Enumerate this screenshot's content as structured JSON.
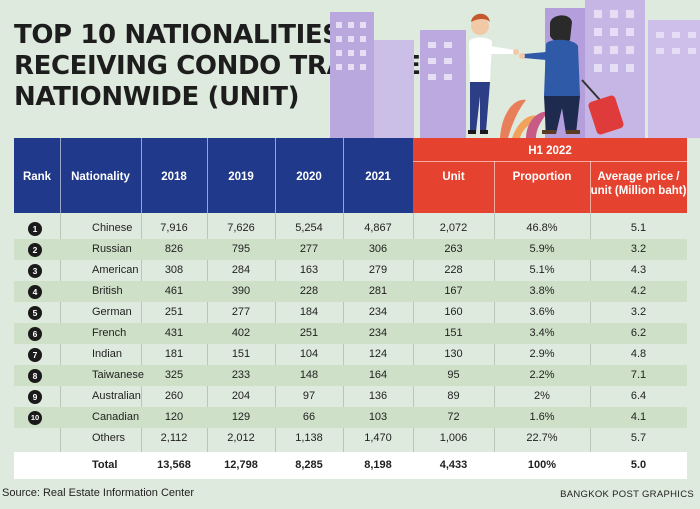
{
  "title_lines": [
    "TOP 10 NATIONALITIES",
    "RECEIVING CONDO TRANSFERS",
    "NATIONWIDE (UNIT)"
  ],
  "headers": {
    "rank": "Rank",
    "nationality": "Nationality",
    "years": [
      "2018",
      "2019",
      "2020",
      "2021"
    ],
    "group": "H1 2022",
    "unit": "Unit",
    "proportion": "Proportion",
    "avg_price_l1": "Average price /",
    "avg_price_l2": "unit (Million baht)"
  },
  "rows": [
    {
      "rank": "1",
      "nationality": "Chinese",
      "y2018": "7,916",
      "y2019": "7,626",
      "y2020": "5,254",
      "y2021": "4,867",
      "unit": "2,072",
      "proportion": "46.8%",
      "avg": "5.1"
    },
    {
      "rank": "2",
      "nationality": "Russian",
      "y2018": "826",
      "y2019": "795",
      "y2020": "277",
      "y2021": "306",
      "unit": "263",
      "proportion": "5.9%",
      "avg": "3.2"
    },
    {
      "rank": "3",
      "nationality": "American",
      "y2018": "308",
      "y2019": "284",
      "y2020": "163",
      "y2021": "279",
      "unit": "228",
      "proportion": "5.1%",
      "avg": "4.3"
    },
    {
      "rank": "4",
      "nationality": "British",
      "y2018": "461",
      "y2019": "390",
      "y2020": "228",
      "y2021": "281",
      "unit": "167",
      "proportion": "3.8%",
      "avg": "4.2"
    },
    {
      "rank": "5",
      "nationality": "German",
      "y2018": "251",
      "y2019": "277",
      "y2020": "184",
      "y2021": "234",
      "unit": "160",
      "proportion": "3.6%",
      "avg": "3.2"
    },
    {
      "rank": "6",
      "nationality": "French",
      "y2018": "431",
      "y2019": "402",
      "y2020": "251",
      "y2021": "234",
      "unit": "151",
      "proportion": "3.4%",
      "avg": "6.2"
    },
    {
      "rank": "7",
      "nationality": "Indian",
      "y2018": "181",
      "y2019": "151",
      "y2020": "104",
      "y2021": "124",
      "unit": "130",
      "proportion": "2.9%",
      "avg": "4.8"
    },
    {
      "rank": "8",
      "nationality": "Taiwanese",
      "y2018": "325",
      "y2019": "233",
      "y2020": "148",
      "y2021": "164",
      "unit": "95",
      "proportion": "2.2%",
      "avg": "7.1"
    },
    {
      "rank": "9",
      "nationality": "Australian",
      "y2018": "260",
      "y2019": "204",
      "y2020": "97",
      "y2021": "136",
      "unit": "89",
      "proportion": "2%",
      "avg": "6.4"
    },
    {
      "rank": "10",
      "nationality": "Canadian",
      "y2018": "120",
      "y2019": "129",
      "y2020": "66",
      "y2021": "103",
      "unit": "72",
      "proportion": "1.6%",
      "avg": "4.1"
    },
    {
      "rank": "",
      "nationality": "Others",
      "y2018": "2,112",
      "y2019": "2,012",
      "y2020": "1,138",
      "y2021": "1,470",
      "unit": "1,006",
      "proportion": "22.7%",
      "avg": "5.7"
    }
  ],
  "total": {
    "label": "Total",
    "y2018": "13,568",
    "y2019": "12,798",
    "y2020": "8,285",
    "y2021": "8,198",
    "unit": "4,433",
    "proportion": "100%",
    "avg": "5.0"
  },
  "source": "Source: Real Estate Information Center",
  "credit": "BANGKOK POST GRAPHICS",
  "colors": {
    "header_blue": "#20398a",
    "header_red": "#e5432f",
    "stripe": "#cfe0c8",
    "background": "#dfeade"
  },
  "chart_data": {
    "type": "table",
    "columns": [
      "Rank",
      "Nationality",
      "2018",
      "2019",
      "2020",
      "2021",
      "H1 2022 Unit",
      "H1 2022 Proportion",
      "H1 2022 Average price / unit (Million baht)"
    ],
    "rows": [
      [
        1,
        "Chinese",
        7916,
        7626,
        5254,
        4867,
        2072,
        46.8,
        5.1
      ],
      [
        2,
        "Russian",
        826,
        795,
        277,
        306,
        263,
        5.9,
        3.2
      ],
      [
        3,
        "American",
        308,
        284,
        163,
        279,
        228,
        5.1,
        4.3
      ],
      [
        4,
        "British",
        461,
        390,
        228,
        281,
        167,
        3.8,
        4.2
      ],
      [
        5,
        "German",
        251,
        277,
        184,
        234,
        160,
        3.6,
        3.2
      ],
      [
        6,
        "French",
        431,
        402,
        251,
        234,
        151,
        3.4,
        6.2
      ],
      [
        7,
        "Indian",
        181,
        151,
        104,
        124,
        130,
        2.9,
        4.8
      ],
      [
        8,
        "Taiwanese",
        325,
        233,
        148,
        164,
        95,
        2.2,
        7.1
      ],
      [
        9,
        "Australian",
        260,
        204,
        97,
        136,
        89,
        2,
        6.4
      ],
      [
        10,
        "Canadian",
        120,
        129,
        66,
        103,
        72,
        1.6,
        4.1
      ],
      [
        null,
        "Others",
        2112,
        2012,
        1138,
        1470,
        1006,
        22.7,
        5.7
      ],
      [
        null,
        "Total",
        13568,
        12798,
        8285,
        8198,
        4433,
        100,
        5.0
      ]
    ]
  }
}
